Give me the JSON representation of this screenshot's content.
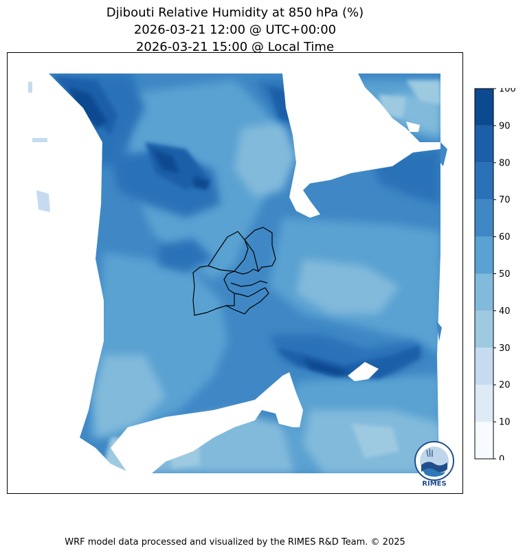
{
  "title": {
    "line1": "Djibouti Relative Humidity at 850 hPa (%)",
    "line2": "2026-03-21 12:00 @ UTC+00:00",
    "line3": "2026-03-21 15:00 @ Local Time"
  },
  "colorbar": {
    "levels": [
      0,
      10,
      20,
      30,
      40,
      50,
      60,
      70,
      80,
      90,
      100
    ],
    "tick_labels": [
      "0",
      "10",
      "20",
      "30",
      "40",
      "50",
      "60",
      "70",
      "80",
      "90",
      "100"
    ],
    "colors": [
      "#f7fbff",
      "#deebf7",
      "#c6dbef",
      "#9ecae1",
      "#82badb",
      "#5aa2d2",
      "#3f88c5",
      "#2a72b8",
      "#1b5fa9",
      "#0c4a90"
    ]
  },
  "logo": {
    "text": "RIMES"
  },
  "footer": {
    "text": "WRF model data processed and visualized by the RIMES R&D Team. © 2025"
  }
}
